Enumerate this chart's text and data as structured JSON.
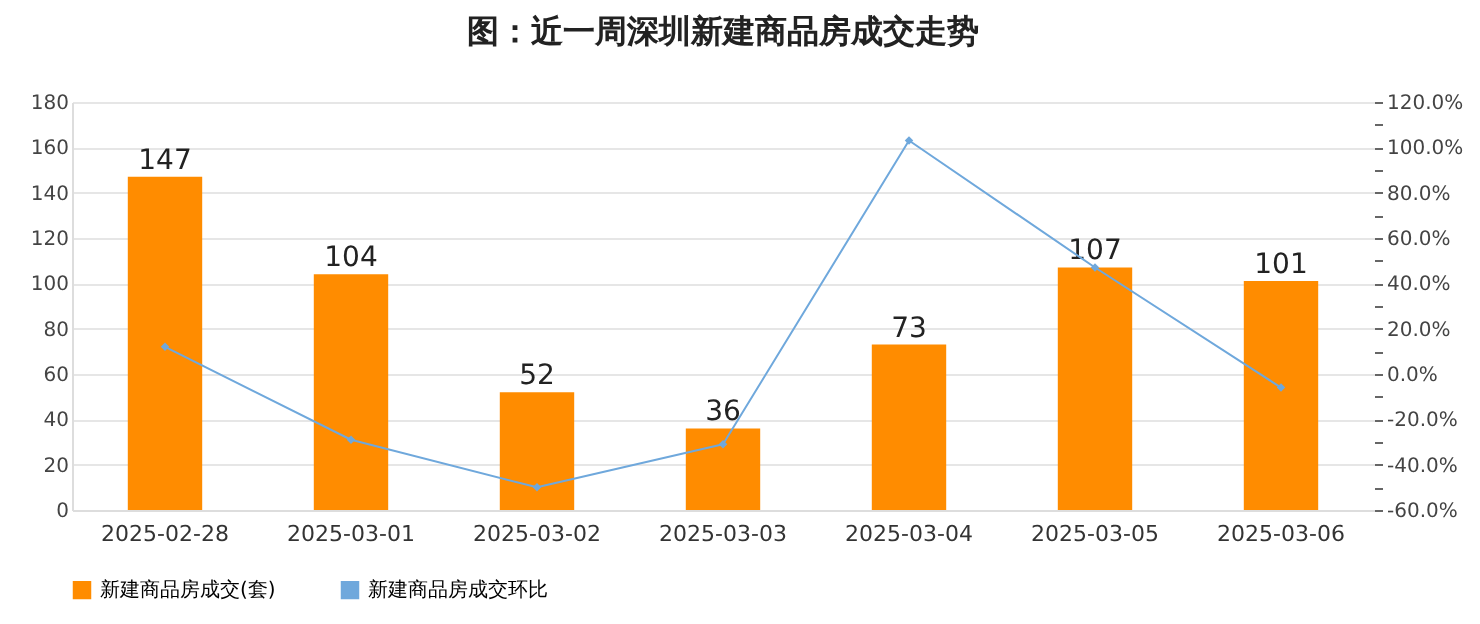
{
  "chart_data": {
    "type": "bar",
    "title": "图：近一周深圳新建商品房成交走势",
    "categories": [
      "2025-02-28",
      "2025-03-01",
      "2025-03-02",
      "2025-03-03",
      "2025-03-04",
      "2025-03-05",
      "2025-03-06"
    ],
    "series": [
      {
        "name": "新建商品房成交(套)",
        "color": "#ff8c00",
        "values": [
          147,
          104,
          52,
          36,
          73,
          107,
          101
        ],
        "value_labels": [
          "147",
          "104",
          "52",
          "36",
          "73",
          "107",
          "101"
        ]
      },
      {
        "name": "新建商品房成交环比",
        "type": "line",
        "axis": "y2",
        "color": "#6fa8dc",
        "marker": "diamond",
        "values": [
          12,
          -29,
          -50,
          -31,
          103,
          47,
          -6
        ]
      }
    ],
    "ylim": [
      0,
      180
    ],
    "yticks": [
      0,
      20,
      40,
      60,
      80,
      100,
      120,
      140,
      160,
      180
    ],
    "y2lim": [
      -60,
      120
    ],
    "y2ticks": [
      {
        "value": -60,
        "label": "-60.0%"
      },
      {
        "value": -50,
        "label": null
      },
      {
        "value": -40,
        "label": "-40.0%"
      },
      {
        "value": -30,
        "label": null
      },
      {
        "value": -20,
        "label": "-20.0%"
      },
      {
        "value": -10,
        "label": null
      },
      {
        "value": 0,
        "label": "0.0%"
      },
      {
        "value": 10,
        "label": null
      },
      {
        "value": 20,
        "label": "20.0%"
      },
      {
        "value": 30,
        "label": null
      },
      {
        "value": 40,
        "label": "40.0%"
      },
      {
        "value": 50,
        "label": null
      },
      {
        "value": 60,
        "label": "60.0%"
      },
      {
        "value": 70,
        "label": null
      },
      {
        "value": 80,
        "label": "80.0%"
      },
      {
        "value": 90,
        "label": null
      },
      {
        "value": 100,
        "label": "100.0%"
      },
      {
        "value": 110,
        "label": null
      },
      {
        "value": 120,
        "label": "120.0%"
      }
    ],
    "grid": "y",
    "legend": "bottom"
  }
}
